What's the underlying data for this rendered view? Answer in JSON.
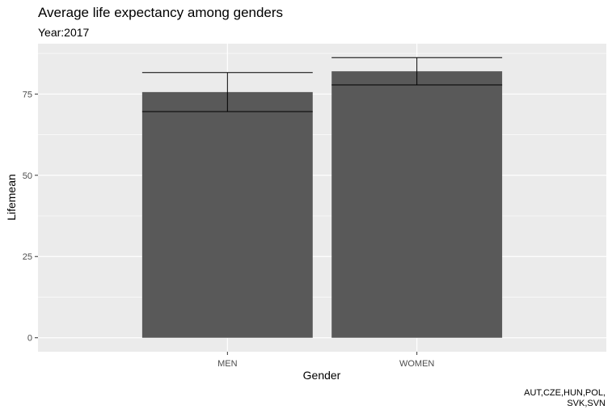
{
  "chart_data": {
    "type": "bar",
    "title": "Average life expectancy among genders",
    "subtitle": "Year:2017",
    "xlabel": "Gender",
    "ylabel": "Lifemean",
    "categories": [
      "MEN",
      "WOMEN"
    ],
    "values": [
      75.6,
      82.0
    ],
    "error_bars": [
      {
        "low": 69.6,
        "high": 81.6
      },
      {
        "low": 77.8,
        "high": 86.2
      }
    ],
    "yticks": [
      0,
      25,
      50,
      75
    ],
    "ylim": [
      -4.3,
      90.5
    ],
    "grid": true,
    "bar_color": "#595959",
    "panel_color": "#EBEBEB",
    "caption_lines": [
      "AUT,CZE,HUN,POL,",
      "SVK,SVN"
    ]
  }
}
